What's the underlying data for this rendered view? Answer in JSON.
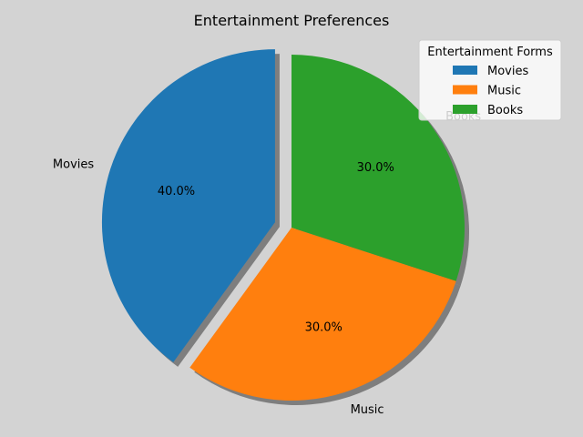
{
  "chart_data": {
    "type": "pie",
    "title": "Entertainment Preferences",
    "categories": [
      "Movies",
      "Music",
      "Books"
    ],
    "values": [
      40,
      30,
      30
    ],
    "percent_labels": [
      "40.0%",
      "30.0%",
      "30.0%"
    ],
    "colors": [
      "#1f77b4",
      "#ff7f0e",
      "#2ca02c"
    ],
    "exploded": [
      "Movies"
    ],
    "shadow": true,
    "start_angle_deg": 90,
    "direction": "counterclockwise",
    "legend": {
      "title": "Entertainment Forms",
      "placement": "top-right",
      "entries": [
        "Movies",
        "Music",
        "Books"
      ]
    }
  }
}
